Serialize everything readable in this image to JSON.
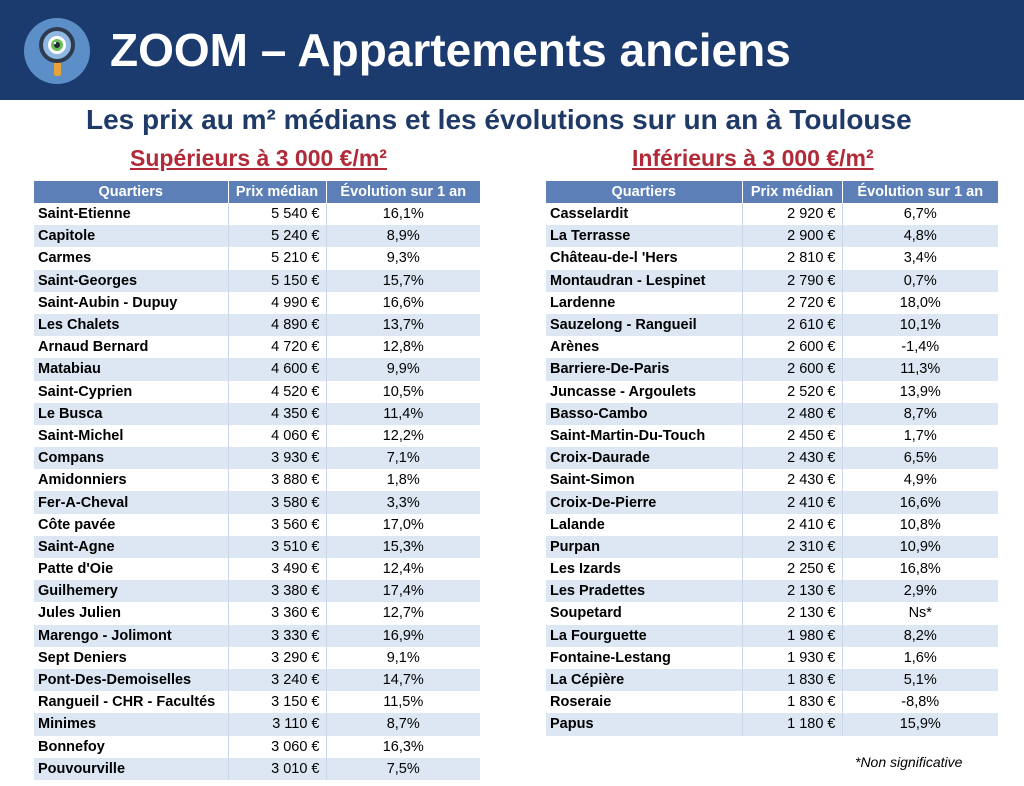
{
  "header": {
    "title": "ZOOM – Appartements anciens",
    "logo_icon": "magnifier-icon"
  },
  "subtitle": "Les prix au m² médians et les évolutions sur un an à Toulouse",
  "left": {
    "title": "Supérieurs à 3 000 €/m²",
    "columns": [
      "Quartiers",
      "Prix médian",
      "Évolution sur 1 an"
    ],
    "rows": [
      [
        "Saint-Etienne",
        "5 540 €",
        "16,1%"
      ],
      [
        "Capitole",
        "5 240 €",
        "8,9%"
      ],
      [
        "Carmes",
        "5 210 €",
        "9,3%"
      ],
      [
        "Saint-Georges",
        "5 150 €",
        "15,7%"
      ],
      [
        "Saint-Aubin - Dupuy",
        "4 990 €",
        "16,6%"
      ],
      [
        "Les Chalets",
        "4 890 €",
        "13,7%"
      ],
      [
        "Arnaud Bernard",
        "4 720 €",
        "12,8%"
      ],
      [
        "Matabiau",
        "4 600 €",
        "9,9%"
      ],
      [
        "Saint-Cyprien",
        "4 520 €",
        "10,5%"
      ],
      [
        "Le Busca",
        "4 350 €",
        "11,4%"
      ],
      [
        "Saint-Michel",
        "4 060 €",
        "12,2%"
      ],
      [
        "Compans",
        "3 930 €",
        "7,1%"
      ],
      [
        "Amidonniers",
        "3 880 €",
        "1,8%"
      ],
      [
        "Fer-A-Cheval",
        "3 580 €",
        "3,3%"
      ],
      [
        "Côte pavée",
        "3 560 €",
        "17,0%"
      ],
      [
        "Saint-Agne",
        "3 510 €",
        "15,3%"
      ],
      [
        "Patte d'Oie",
        "3 490 €",
        "12,4%"
      ],
      [
        "Guilhemery",
        "3 380 €",
        "17,4%"
      ],
      [
        "Jules Julien",
        "3 360 €",
        "12,7%"
      ],
      [
        "Marengo - Jolimont",
        "3 330 €",
        "16,9%"
      ],
      [
        "Sept Deniers",
        "3 290 €",
        "9,1%"
      ],
      [
        "Pont-Des-Demoiselles",
        "3 240 €",
        "14,7%"
      ],
      [
        "Rangueil - CHR - Facultés",
        "3 150 €",
        "11,5%"
      ],
      [
        "Minimes",
        "3 110 €",
        "8,7%"
      ],
      [
        "Bonnefoy",
        "3 060 €",
        "16,3%"
      ],
      [
        "Pouvourville",
        "3 010 €",
        "7,5%"
      ]
    ]
  },
  "right": {
    "title": "Inférieurs à 3 000 €/m²",
    "columns": [
      "Quartiers",
      "Prix médian",
      "Évolution sur 1 an"
    ],
    "rows": [
      [
        "Casselardit",
        "2 920 €",
        "6,7%"
      ],
      [
        "La Terrasse",
        "2 900 €",
        "4,8%"
      ],
      [
        "Château-de-l 'Hers",
        "2 810 €",
        "3,4%"
      ],
      [
        "Montaudran - Lespinet",
        "2 790 €",
        "0,7%"
      ],
      [
        "Lardenne",
        "2 720 €",
        "18,0%"
      ],
      [
        "Sauzelong - Rangueil",
        "2 610 €",
        "10,1%"
      ],
      [
        "Arènes",
        "2 600 €",
        "-1,4%"
      ],
      [
        "Barriere-De-Paris",
        "2 600 €",
        "11,3%"
      ],
      [
        "Juncasse - Argoulets",
        "2 520 €",
        "13,9%"
      ],
      [
        "Basso-Cambo",
        "2 480 €",
        "8,7%"
      ],
      [
        "Saint-Martin-Du-Touch",
        "2 450 €",
        "1,7%"
      ],
      [
        "Croix-Daurade",
        "2 430 €",
        "6,5%"
      ],
      [
        "Saint-Simon",
        "2 430 €",
        "4,9%"
      ],
      [
        "Croix-De-Pierre",
        "2 410 €",
        "16,6%"
      ],
      [
        "Lalande",
        "2 410 €",
        "10,8%"
      ],
      [
        "Purpan",
        "2 310 €",
        "10,9%"
      ],
      [
        "Les Izards",
        "2 250 €",
        "16,8%"
      ],
      [
        "Les Pradettes",
        "2 130 €",
        "2,9%"
      ],
      [
        "Soupetard",
        "2 130 €",
        "Ns*"
      ],
      [
        "La Fourguette",
        "1 980 €",
        "8,2%"
      ],
      [
        "Fontaine-Lestang",
        "1 930 €",
        "1,6%"
      ],
      [
        "La Cépière",
        "1 830 €",
        "5,1%"
      ],
      [
        "Roseraie",
        "1 830 €",
        "-8,8%"
      ],
      [
        "Papus",
        "1 180 €",
        "15,9%"
      ]
    ]
  },
  "footnote": "*Non significative",
  "colors": {
    "banner": "#1b3a6e",
    "subtitle": "#1f3a66",
    "section_title": "#b02a37",
    "table_header": "#5b7fb6",
    "row_alt": "#dce7f3"
  }
}
